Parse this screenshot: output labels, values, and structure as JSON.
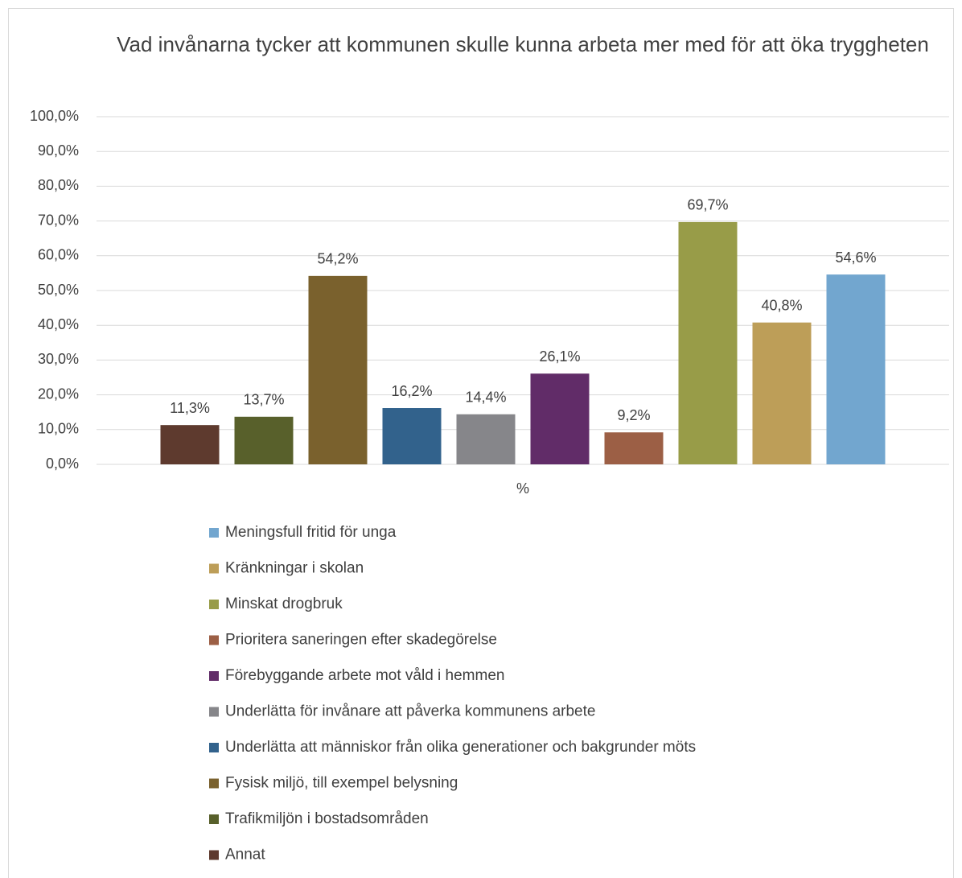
{
  "chart_data": {
    "type": "bar",
    "title": "Vad invånarna tycker att kommunen skulle kunna arbeta mer med för att öka tryggheten",
    "categories": [
      "%"
    ],
    "series": [
      {
        "name": "Annat",
        "color": "#5e3a2e",
        "values": [
          11.3
        ],
        "value_labels": [
          "11,3%"
        ]
      },
      {
        "name": "Trafikmiljön i bostadsområden",
        "color": "#58602b",
        "values": [
          13.7
        ],
        "value_labels": [
          "13,7%"
        ]
      },
      {
        "name": "Fysisk miljö, till exempel belysning",
        "color": "#7a612d",
        "values": [
          54.2
        ],
        "value_labels": [
          "54,2%"
        ]
      },
      {
        "name": "Underlätta att människor från olika generationer och bakgrunder möts",
        "color": "#32628c",
        "values": [
          16.2
        ],
        "value_labels": [
          "16,2%"
        ]
      },
      {
        "name": "Underlätta för invånare att påverka kommunens arbete",
        "color": "#86868a",
        "values": [
          14.4
        ],
        "value_labels": [
          "14,4%"
        ]
      },
      {
        "name": "Förebyggande arbete mot våld i hemmen",
        "color": "#612c68",
        "values": [
          26.1
        ],
        "value_labels": [
          "26,1%"
        ]
      },
      {
        "name": "Prioritera saneringen efter skadegörelse",
        "color": "#9c5f45",
        "values": [
          9.2
        ],
        "value_labels": [
          "9,2%"
        ]
      },
      {
        "name": "Minskat drogbruk",
        "color": "#989c48",
        "values": [
          69.7
        ],
        "value_labels": [
          "69,7%"
        ]
      },
      {
        "name": "Kränkningar i skolan",
        "color": "#bd9e58",
        "values": [
          40.8
        ],
        "value_labels": [
          "40,8%"
        ]
      },
      {
        "name": "Meningsfull fritid för unga",
        "color": "#72a6cf",
        "values": [
          54.6
        ],
        "value_labels": [
          "54,6%"
        ]
      }
    ],
    "ylim": [
      0,
      100
    ],
    "yticks": [
      {
        "value": 0,
        "label": "0,0%"
      },
      {
        "value": 10,
        "label": "10,0%"
      },
      {
        "value": 20,
        "label": "20,0%"
      },
      {
        "value": 30,
        "label": "30,0%"
      },
      {
        "value": 40,
        "label": "40,0%"
      },
      {
        "value": 50,
        "label": "50,0%"
      },
      {
        "value": 60,
        "label": "60,0%"
      },
      {
        "value": 70,
        "label": "70,0%"
      },
      {
        "value": 80,
        "label": "80,0%"
      },
      {
        "value": 90,
        "label": "90,0%"
      },
      {
        "value": 100,
        "label": "100,0%"
      }
    ],
    "grid": true,
    "legend": "bottom"
  }
}
